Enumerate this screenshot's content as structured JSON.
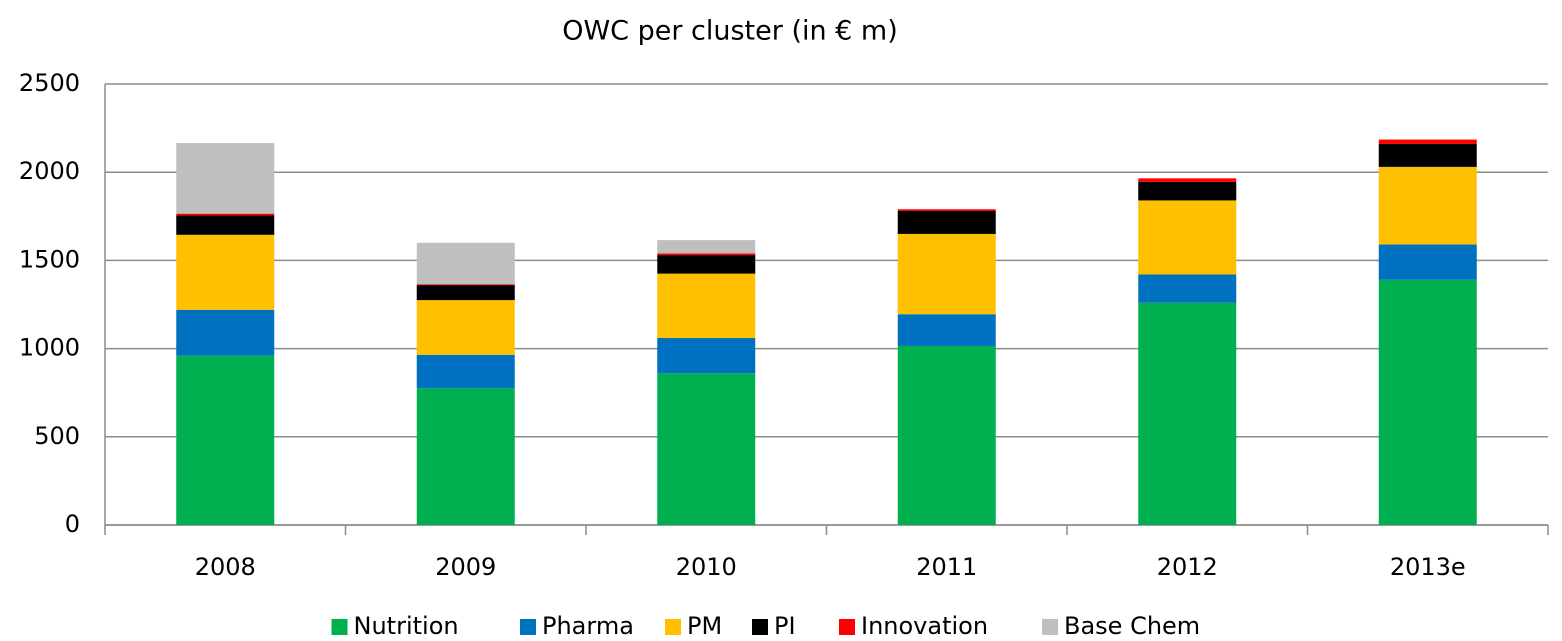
{
  "chart_data": {
    "type": "stacked_bar",
    "title": "OWC per cluster (in € m)",
    "categories": [
      "2008",
      "2009",
      "2010",
      "2011",
      "2012",
      "2013e"
    ],
    "series": [
      {
        "name": "Nutrition",
        "color": "#00b050",
        "values": [
          960,
          775,
          860,
          1015,
          1260,
          1390
        ]
      },
      {
        "name": "Pharma",
        "color": "#0070c0",
        "values": [
          260,
          190,
          200,
          180,
          160,
          200
        ]
      },
      {
        "name": "PM",
        "color": "#ffc000",
        "values": [
          425,
          310,
          365,
          455,
          420,
          440
        ]
      },
      {
        "name": "PI",
        "color": "#000000",
        "values": [
          110,
          85,
          105,
          130,
          105,
          130
        ]
      },
      {
        "name": "Innovation",
        "color": "#ff0000",
        "values": [
          10,
          5,
          10,
          10,
          20,
          25
        ]
      },
      {
        "name": "Base Chem",
        "color": "#bfbfbf",
        "values": [
          400,
          235,
          75,
          0,
          0,
          0
        ]
      }
    ],
    "ylim": [
      0,
      2500
    ],
    "yticks": [
      0,
      500,
      1000,
      1500,
      2000,
      2500
    ],
    "grid": true,
    "legend": "bottom"
  }
}
